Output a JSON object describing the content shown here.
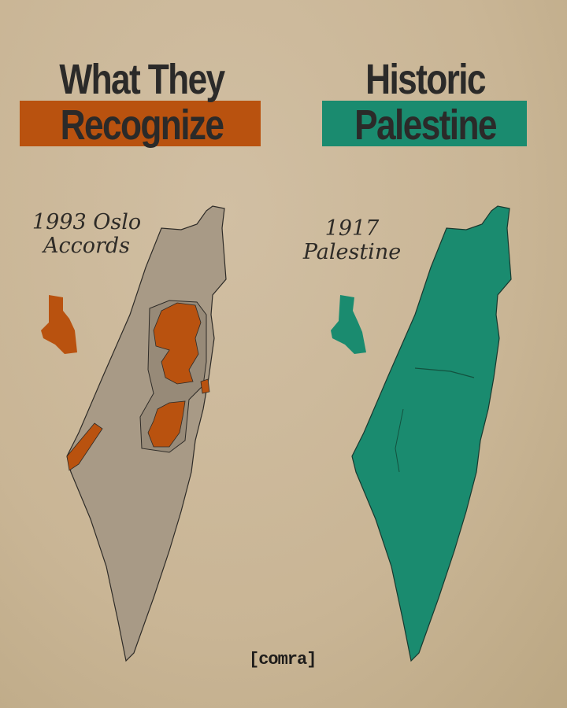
{
  "left": {
    "title_line1": "What They",
    "title_line2": "Recognize",
    "label_line1": "1993 Oslo",
    "label_line2": "Accords"
  },
  "right": {
    "title_line1": "Historic",
    "title_line2": "Palestine",
    "label_line1": "1917",
    "label_line2": "Palestine"
  },
  "logo": "[comra]",
  "colors": {
    "orange": "#b9520f",
    "teal": "#1a8b6f",
    "map_gray": "#a89a86",
    "text": "#2b2a29",
    "paper": "#c9b595"
  }
}
